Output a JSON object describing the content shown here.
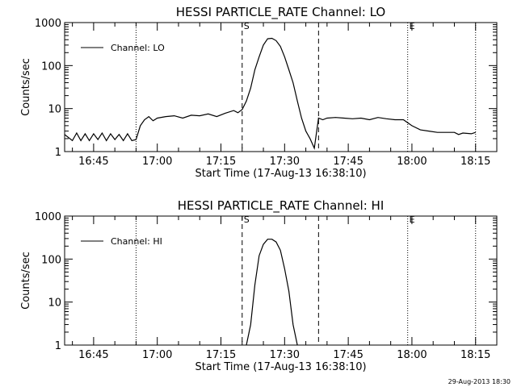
{
  "timestamp": "29-Aug-2013 18:30",
  "chart_data": [
    {
      "type": "line",
      "title": "HESSI PARTICLE_RATE Channel: LO",
      "xlabel": "Start Time (17-Aug-13 16:38:10)",
      "ylabel": "Counts/sec",
      "legend": {
        "text": "Channel: LO",
        "position": "top-left"
      },
      "yscale": "log",
      "ylim": [
        1,
        1000
      ],
      "y_ticks": [
        1,
        10,
        100,
        1000
      ],
      "y_tick_labels": [
        "1",
        "10",
        "100",
        "1000"
      ],
      "xlim": [
        "16:38:10",
        "18:20"
      ],
      "x_ticks": [
        "16:45",
        "17:00",
        "17:15",
        "17:30",
        "17:45",
        "18:00",
        "18:15"
      ],
      "markers": [
        {
          "x": "16:55",
          "style": "dotted",
          "label": ""
        },
        {
          "x": "17:20",
          "style": "dashed",
          "label": "S"
        },
        {
          "x": "17:38",
          "style": "dashed",
          "label": ""
        },
        {
          "x": "17:59",
          "style": "dotted",
          "label": "E"
        },
        {
          "x": "18:15",
          "style": "dotted",
          "label": ""
        }
      ],
      "series": [
        {
          "name": "Channel: LO",
          "x": [
            "16:38:10",
            "16:40",
            "16:41",
            "16:42",
            "16:43",
            "16:44",
            "16:45",
            "16:46",
            "16:47",
            "16:48",
            "16:49",
            "16:50",
            "16:51",
            "16:52",
            "16:53",
            "16:54",
            "16:55",
            "16:56",
            "16:57",
            "16:58",
            "16:59",
            "17:00",
            "17:02",
            "17:04",
            "17:06",
            "17:08",
            "17:10",
            "17:12",
            "17:14",
            "17:16",
            "17:18",
            "17:19",
            "17:20",
            "17:21",
            "17:22",
            "17:23",
            "17:24",
            "17:25",
            "17:26",
            "17:27",
            "17:28",
            "17:29",
            "17:30",
            "17:31",
            "17:32",
            "17:33",
            "17:34",
            "17:35",
            "17:36",
            "17:37",
            "17:38",
            "17:39",
            "17:40",
            "17:42",
            "17:44",
            "17:46",
            "17:48",
            "17:50",
            "17:52",
            "17:54",
            "17:56",
            "17:58",
            "18:00",
            "18:02",
            "18:04",
            "18:06",
            "18:08",
            "18:10",
            "18:11",
            "18:12",
            "18:14",
            "18:15"
          ],
          "y": [
            2.5,
            1.8,
            2.7,
            1.8,
            2.6,
            1.8,
            2.6,
            1.9,
            2.7,
            1.8,
            2.6,
            1.9,
            2.5,
            1.8,
            2.6,
            1.8,
            1.9,
            4,
            5.5,
            6.5,
            5.2,
            6,
            6.5,
            6.8,
            6,
            7,
            6.8,
            7.5,
            6.5,
            7.8,
            9,
            8,
            9.5,
            15,
            30,
            80,
            160,
            300,
            420,
            430,
            380,
            280,
            160,
            80,
            40,
            15,
            6,
            3,
            2,
            1.2,
            6,
            5.5,
            6,
            6.2,
            6,
            5.8,
            6,
            5.5,
            6.2,
            5.8,
            5.5,
            5.5,
            4,
            3.2,
            3,
            2.8,
            2.8,
            2.8,
            2.5,
            2.7,
            2.6,
            2.8
          ]
        }
      ]
    },
    {
      "type": "line",
      "title": "HESSI PARTICLE_RATE Channel: HI",
      "xlabel": "Start Time (17-Aug-13 16:38:10)",
      "ylabel": "Counts/sec",
      "legend": {
        "text": "Channel: HI",
        "position": "top-left"
      },
      "yscale": "log",
      "ylim": [
        1,
        1000
      ],
      "y_ticks": [
        1,
        10,
        100,
        1000
      ],
      "y_tick_labels": [
        "1",
        "10",
        "100",
        "1000"
      ],
      "xlim": [
        "16:38:10",
        "18:20"
      ],
      "x_ticks": [
        "16:45",
        "17:00",
        "17:15",
        "17:30",
        "17:45",
        "18:00",
        "18:15"
      ],
      "markers": [
        {
          "x": "16:55",
          "style": "dotted",
          "label": ""
        },
        {
          "x": "17:20",
          "style": "dashed",
          "label": "S"
        },
        {
          "x": "17:38",
          "style": "dashed",
          "label": ""
        },
        {
          "x": "17:59",
          "style": "dotted",
          "label": "E"
        },
        {
          "x": "18:15",
          "style": "dotted",
          "label": ""
        }
      ],
      "series": [
        {
          "name": "Channel: HI",
          "x": [
            "17:21",
            "17:22",
            "17:23",
            "17:24",
            "17:25",
            "17:26",
            "17:27",
            "17:28",
            "17:29",
            "17:30",
            "17:31",
            "17:32",
            "17:33"
          ],
          "y": [
            1,
            3,
            25,
            120,
            220,
            290,
            290,
            250,
            160,
            60,
            18,
            3,
            1
          ]
        }
      ]
    }
  ]
}
